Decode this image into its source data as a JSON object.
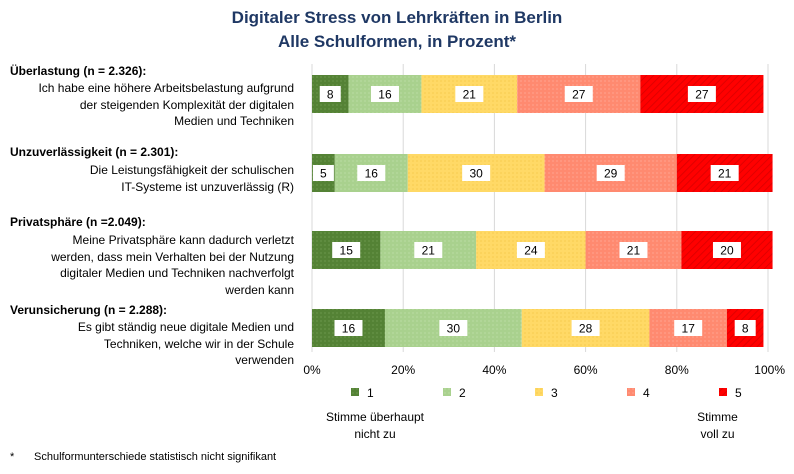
{
  "title_line1": "Digitaler Stress von Lehrkräften in Berlin",
  "title_line2": "Alle Schulformen,  in Prozent*",
  "rows": [
    {
      "heading": "Überlastung (n = 2.326):",
      "description": [
        "Ich habe eine höhere Arbeitsbelastung aufgrund",
        "der steigenden Komplexität der digitalen",
        "Medien und Techniken"
      ]
    },
    {
      "heading": "Unzuverlässigkeit (n = 2.301):",
      "description": [
        "Die Leistungsfähigkeit der schulischen",
        "IT-Systeme ist unzuverlässig (R)"
      ]
    },
    {
      "heading": "Privatsphäre (n =2.049):",
      "description": [
        "Meine Privatsphäre kann dadurch verletzt",
        "werden, dass mein Verhalten bei der Nutzung",
        "digitaler Medien und Techniken nachverfolgt",
        "werden kann"
      ]
    },
    {
      "heading": "Verunsicherung (n = 2.288):",
      "description": [
        "Es gibt ständig neue digitale Medien und",
        "Techniken, welche wir in der Schule",
        "verwenden"
      ]
    }
  ],
  "scale_low_label": [
    "Stimme überhaupt",
    "nicht zu"
  ],
  "scale_high_label": [
    "Stimme",
    "voll zu"
  ],
  "footnote_marker": "*",
  "footnote_text": "Schulformunterschiede  statistisch nicht signifikant",
  "chart_data": {
    "type": "bar",
    "orientation": "horizontal",
    "stacked": true,
    "categories": [
      "Überlastung",
      "Unzuverlässigkeit",
      "Privatsphäre",
      "Verunsicherung"
    ],
    "series": [
      {
        "name": "1",
        "color": "#548235",
        "values": [
          8,
          5,
          15,
          16
        ]
      },
      {
        "name": "2",
        "color": "#a9d18e",
        "values": [
          16,
          16,
          21,
          30
        ]
      },
      {
        "name": "3",
        "color": "#ffd966",
        "values": [
          21,
          30,
          24,
          28
        ]
      },
      {
        "name": "4",
        "color": "#ff8a70",
        "values": [
          27,
          29,
          21,
          17
        ]
      },
      {
        "name": "5",
        "color": "#ff0000",
        "values": [
          27,
          21,
          20,
          8
        ]
      }
    ],
    "xlim": [
      0,
      100
    ],
    "x_ticks": [
      "0%",
      "20%",
      "40%",
      "60%",
      "80%",
      "100%"
    ],
    "grid": true,
    "legend_position": "bottom"
  }
}
